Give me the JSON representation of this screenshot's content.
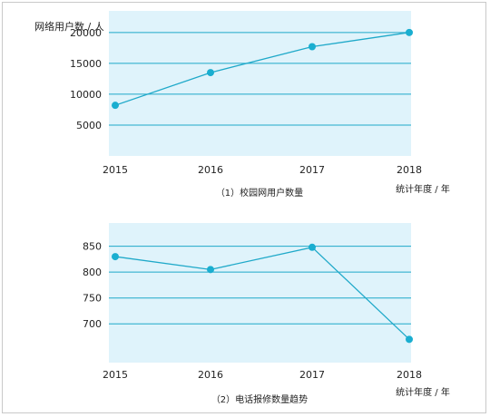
{
  "chart_data": [
    {
      "type": "line",
      "title": "（1）校园网用户数量",
      "ylabel": "网络用户数 / 人",
      "xlabel": "统计年度 / 年",
      "categories": [
        "2015",
        "2016",
        "2017",
        "2018"
      ],
      "series": [
        {
          "values": [
            8200,
            13500,
            17700,
            20000
          ]
        }
      ],
      "yticks": [
        5000,
        10000,
        15000,
        20000
      ],
      "ylim": [
        0,
        23500
      ],
      "grid": true,
      "colors": {
        "plot_bg": "#dff3fb",
        "grid": "#1fa9c9",
        "line": "#1fa9c9",
        "marker": "#1aaed0"
      }
    },
    {
      "type": "line",
      "title": "（2）电话报修数量趋势",
      "xlabel": "统计年度 / 年",
      "categories": [
        "2015",
        "2016",
        "2017",
        "2018"
      ],
      "series": [
        {
          "values": [
            830,
            805,
            848,
            670
          ]
        }
      ],
      "yticks": [
        700,
        750,
        800,
        850
      ],
      "ylim": [
        625,
        895
      ],
      "grid": true,
      "colors": {
        "plot_bg": "#dff3fb",
        "grid": "#1fa9c9",
        "line": "#1fa9c9",
        "marker": "#1aaed0"
      }
    }
  ]
}
